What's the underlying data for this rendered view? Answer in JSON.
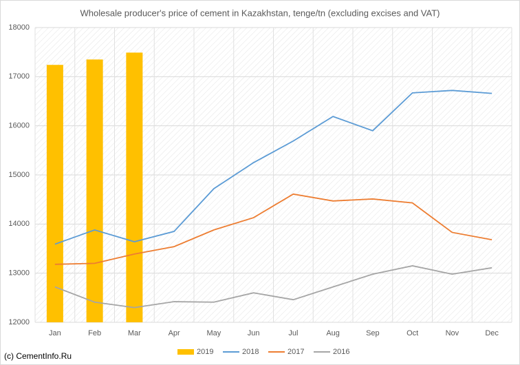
{
  "chart_data": {
    "type": "combo",
    "title": "Wholesale producer's price of cement in Kazakhstan, tenge/tn (excluding excises and VAT)",
    "source": "(c) CementInfo.Ru",
    "categories": [
      "Jan",
      "Feb",
      "Mar",
      "Apr",
      "May",
      "Jun",
      "Jul",
      "Aug",
      "Sep",
      "Oct",
      "Nov",
      "Dec"
    ],
    "series": [
      {
        "name": "2019",
        "type": "bar",
        "color": "#ffc000",
        "values": [
          17240,
          17350,
          17490,
          null,
          null,
          null,
          null,
          null,
          null,
          null,
          null,
          null
        ]
      },
      {
        "name": "2018",
        "type": "line",
        "color": "#5b9bd5",
        "values": [
          13590,
          13880,
          13640,
          13850,
          14720,
          15250,
          15690,
          16190,
          15900,
          16670,
          16720,
          16660
        ]
      },
      {
        "name": "2017",
        "type": "line",
        "color": "#ed7d31",
        "values": [
          13180,
          13200,
          13390,
          13540,
          13880,
          14130,
          14610,
          14470,
          14510,
          14430,
          13830,
          13680
        ]
      },
      {
        "name": "2016",
        "type": "line",
        "color": "#a5a5a5",
        "values": [
          12720,
          12410,
          12300,
          12420,
          12410,
          12600,
          12460,
          12720,
          12980,
          13150,
          12980,
          13110
        ]
      }
    ],
    "ylim": [
      12000,
      18000
    ],
    "yticks": [
      12000,
      13000,
      14000,
      15000,
      16000,
      17000,
      18000
    ],
    "grid": true,
    "legend": "bottom"
  }
}
